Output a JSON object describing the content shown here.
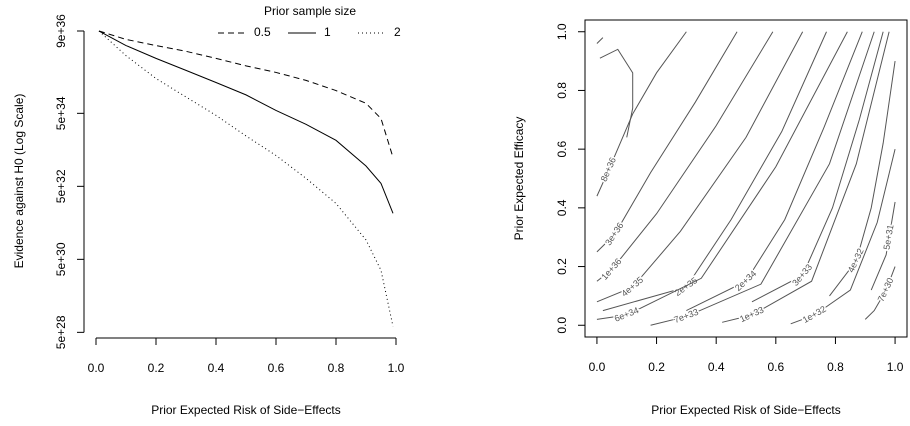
{
  "chart_data": [
    {
      "type": "line",
      "xlabel": "Prior Expected Risk of Side−Effects",
      "ylabel": "Evidence against H0 (Log Scale)",
      "legend_title": "Prior sample size",
      "legend": "top-right",
      "log_y": true,
      "x": [
        0.01,
        0.1,
        0.2,
        0.3,
        0.4,
        0.5,
        0.6,
        0.7,
        0.8,
        0.9,
        0.95,
        0.99
      ],
      "series": [
        {
          "name": "0.5",
          "color": "#000000",
          "linestyle": "dashed",
          "values": [
            9e+36,
            5.3e+36,
            3.6e+36,
            2.5e+36,
            1.6e+36,
            1e+36,
            6.6e+35,
            4e+35,
            2.1e+35,
            9.4e+34,
            3.6e+34,
            3.1e+33
          ]
        },
        {
          "name": "1",
          "color": "#000000",
          "linestyle": "solid",
          "values": [
            9e+36,
            3.6e+36,
            1.6e+36,
            7.5e+35,
            3.5e+35,
            1.6e+35,
            6e+34,
            2.5e+34,
            9.1e+33,
            1.8e+33,
            6e+32,
            9.1e+31
          ]
        },
        {
          "name": "2",
          "color": "#000000",
          "linestyle": "dotted",
          "values": [
            9e+36,
            1.9e+36,
            4.5e+35,
            1.4e+35,
            4.4e+34,
            1.2e+34,
            3.5e+33,
            8.3e+32,
            1.7e+32,
            1.7e+31,
            2.5e+30,
            7.3e+28
          ]
        }
      ],
      "xlim": [
        -0.04,
        1.04
      ],
      "xticks": [
        {
          "value": 0,
          "label": "0.0"
        },
        {
          "value": 0.2,
          "label": "0.2"
        },
        {
          "value": 0.4,
          "label": "0.4"
        },
        {
          "value": 0.6,
          "label": "0.6"
        },
        {
          "value": 0.8,
          "label": "0.8"
        },
        {
          "value": 1,
          "label": "1.0"
        }
      ],
      "ylim": [
        3.5e+28,
        1.4e+37
      ],
      "yticks": [
        {
          "value": 5e+28,
          "label": "5e+28"
        },
        {
          "value": 5e+30,
          "label": "5e+30"
        },
        {
          "value": 5e+32,
          "label": "5e+32"
        },
        {
          "value": 5e+34,
          "label": "5e+34"
        },
        {
          "value": 9e+36,
          "label": "9e+36"
        }
      ]
    },
    {
      "type": "contour",
      "xlabel": "Prior Expected Risk of Side−Effects",
      "ylabel": "Prior Expected Efficacy",
      "color": "#555555",
      "contours": [
        {
          "level": 8e+36,
          "label": "8e+36",
          "x": [
            0.0,
            0.04,
            0.12,
            0.2,
            0.3
          ],
          "y": [
            0.44,
            0.53,
            0.72,
            0.86,
            1.0
          ]
        },
        {
          "level": 3e+36,
          "label": "3e+36",
          "x": [
            0.0,
            0.06,
            0.18,
            0.33,
            0.47
          ],
          "y": [
            0.25,
            0.31,
            0.52,
            0.76,
            1.0
          ]
        },
        {
          "level": 1e+36,
          "label": "1e+36",
          "x": [
            0.0,
            0.05,
            0.2,
            0.4,
            0.59
          ],
          "y": [
            0.15,
            0.19,
            0.38,
            0.68,
            1.0
          ]
        },
        {
          "level": 4e+35,
          "label": "4e+35",
          "x": [
            0.0,
            0.12,
            0.28,
            0.5,
            0.69
          ],
          "y": [
            0.08,
            0.13,
            0.32,
            0.64,
            1.0
          ]
        },
        {
          "level": 2e+35,
          "label": "2e+35",
          "x": [
            0.02,
            0.3,
            0.45,
            0.62,
            0.77
          ],
          "y": [
            0.05,
            0.13,
            0.36,
            0.66,
            1.0
          ]
        },
        {
          "level": 6e+34,
          "label": "6e+34",
          "x": [
            0.0,
            0.1,
            0.35,
            0.6,
            0.84
          ],
          "y": [
            0.02,
            0.035,
            0.16,
            0.54,
            1.0
          ]
        },
        {
          "level": 2e+34,
          "label": "2e+34",
          "x": [
            0.3,
            0.5,
            0.63,
            0.76,
            0.89
          ],
          "y": [
            0.05,
            0.15,
            0.36,
            0.67,
            1.0
          ]
        },
        {
          "level": 7e+33,
          "label": "7e+33",
          "x": [
            0.18,
            0.3,
            0.55,
            0.78,
            0.93
          ],
          "y": [
            0.0,
            0.03,
            0.14,
            0.55,
            1.0
          ]
        },
        {
          "level": 3e+33,
          "label": "3e+33",
          "x": [
            0.52,
            0.69,
            0.79,
            0.88,
            0.96
          ],
          "y": [
            0.08,
            0.17,
            0.4,
            0.7,
            1.0
          ]
        },
        {
          "level": 1e+33,
          "label": "1e+33",
          "x": [
            0.42,
            0.52,
            0.72,
            0.87,
            0.98
          ],
          "y": [
            0.01,
            0.035,
            0.15,
            0.55,
            1.0
          ]
        },
        {
          "level": 4e+32,
          "label": "4e+32",
          "x": [
            0.78,
            0.87,
            0.92,
            0.96,
            1.0
          ],
          "y": [
            0.1,
            0.22,
            0.4,
            0.62,
            0.9
          ]
        },
        {
          "level": 1e+32,
          "label": "1e+32",
          "x": [
            0.65,
            0.73,
            0.85,
            0.94,
            1.0
          ],
          "y": [
            0.005,
            0.035,
            0.12,
            0.35,
            0.6
          ]
        },
        {
          "level": 5e+31,
          "label": "5e+31",
          "x": [
            0.92,
            0.97,
            0.98,
            1.0
          ],
          "y": [
            0.12,
            0.24,
            0.3,
            0.42
          ]
        },
        {
          "level": 7e+30,
          "label": "7e+30",
          "x": [
            0.9,
            0.93,
            0.97,
            1.0
          ],
          "y": [
            0.02,
            0.05,
            0.12,
            0.2
          ]
        },
        {
          "x": [
            0.01,
            0.07,
            0.12,
            0.12,
            0.1
          ],
          "y": [
            0.91,
            0.94,
            0.86,
            0.74,
            0.64
          ]
        },
        {
          "x": [
            0.0,
            0.02
          ],
          "y": [
            0.96,
            0.98
          ]
        }
      ],
      "xlim": [
        -0.04,
        1.04
      ],
      "xticks": [
        {
          "value": 0,
          "label": "0.0"
        },
        {
          "value": 0.2,
          "label": "0.2"
        },
        {
          "value": 0.4,
          "label": "0.4"
        },
        {
          "value": 0.6,
          "label": "0.6"
        },
        {
          "value": 0.8,
          "label": "0.8"
        },
        {
          "value": 1,
          "label": "1.0"
        }
      ],
      "ylim": [
        -0.04,
        1.04
      ],
      "yticks": [
        {
          "value": 0,
          "label": "0.0"
        },
        {
          "value": 0.2,
          "label": "0.2"
        },
        {
          "value": 0.4,
          "label": "0.4"
        },
        {
          "value": 0.6,
          "label": "0.6"
        },
        {
          "value": 0.8,
          "label": "0.8"
        },
        {
          "value": 1,
          "label": "1.0"
        }
      ]
    }
  ]
}
